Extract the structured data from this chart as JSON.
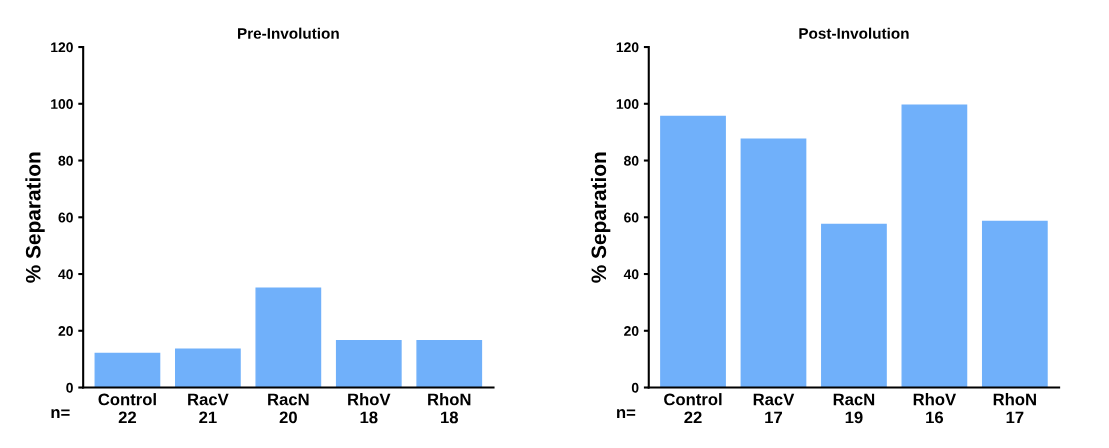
{
  "chart_data": [
    {
      "type": "bar",
      "title": "Pre-Involution",
      "ylabel": "% Separation",
      "categories": [
        "Control\n22",
        "RacV\n21",
        "RacN\n20",
        "RhoV\n18",
        "RhoN\n18"
      ],
      "values": [
        12,
        13.5,
        35,
        16.5,
        16.5
      ],
      "color": "#70b0fa",
      "ylim": [
        0,
        120
      ],
      "yticks": [
        0,
        20,
        40,
        60,
        80,
        100,
        120
      ],
      "grid": false,
      "annotations": [
        "n="
      ]
    },
    {
      "type": "bar",
      "title": "Post-Involution",
      "ylabel": "% Separation",
      "categories": [
        "Control\n22",
        "RacV\n17",
        "RacN\n19",
        "RhoV\n16",
        "RhoN\n17"
      ],
      "values": [
        95.5,
        87.5,
        57.5,
        99.5,
        58.5
      ],
      "color": "#70b0fa",
      "ylim": [
        0,
        120
      ],
      "yticks": [
        0,
        20,
        40,
        60,
        80,
        100,
        120
      ],
      "grid": false,
      "annotations": [
        "n="
      ]
    }
  ]
}
